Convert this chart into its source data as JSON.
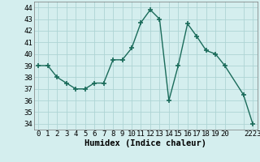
{
  "x": [
    0,
    1,
    2,
    3,
    4,
    5,
    6,
    7,
    8,
    9,
    10,
    11,
    12,
    13,
    14,
    15,
    16,
    17,
    18,
    19,
    20,
    22,
    23
  ],
  "y": [
    39,
    39,
    38,
    37.5,
    37,
    37,
    37.5,
    37.5,
    39.5,
    39.5,
    40.5,
    42.7,
    43.8,
    43,
    36,
    39,
    42.6,
    41.5,
    40.3,
    40,
    39,
    36.5,
    34
  ],
  "line_color": "#1a6b5a",
  "marker": "+",
  "marker_size": 4,
  "marker_linewidth": 1.2,
  "bg_color": "#d4eeee",
  "grid_color": "#aed4d4",
  "xlabel": "Humidex (Indice chaleur)",
  "ylim": [
    33.5,
    44.5
  ],
  "yticks": [
    34,
    35,
    36,
    37,
    38,
    39,
    40,
    41,
    42,
    43,
    44
  ],
  "xticks": [
    0,
    1,
    2,
    3,
    4,
    5,
    6,
    7,
    8,
    9,
    10,
    11,
    12,
    13,
    14,
    15,
    16,
    17,
    18,
    19,
    20,
    22,
    23
  ],
  "xticklabels": [
    "0",
    "1",
    "2",
    "3",
    "4",
    "5",
    "6",
    "7",
    "8",
    "9",
    "10",
    "11",
    "12",
    "13",
    "14",
    "15",
    "16",
    "17",
    "18",
    "19",
    "20",
    "",
    "2223"
  ],
  "xlim": [
    -0.5,
    23.5
  ],
  "font_family": "monospace",
  "tick_fontsize": 6.5,
  "xlabel_fontsize": 7.5,
  "linewidth": 1.0
}
